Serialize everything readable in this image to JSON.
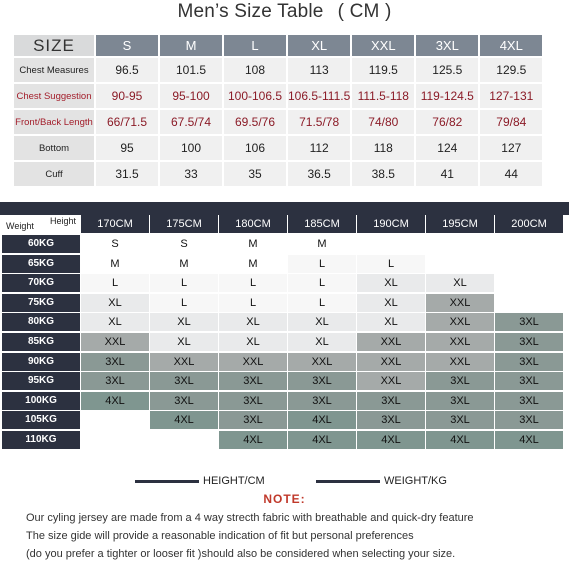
{
  "title": {
    "text": "Men’s  Size Table",
    "unit": "(   CM   )"
  },
  "size_table": {
    "header_label": "SIZE",
    "sizes": [
      "S",
      "M",
      "L",
      "XL",
      "XXL",
      "3XL",
      "4XL"
    ],
    "rows": [
      {
        "label": "Chest Measures",
        "red": false,
        "values": [
          "96.5",
          "101.5",
          "108",
          "113",
          "119.5",
          "125.5",
          "129.5"
        ]
      },
      {
        "label": "Chest Suggestion",
        "red": true,
        "values": [
          "90-95",
          "95-100",
          "100-106.5",
          "106.5-111.5",
          "111.5-118",
          "119-124.5",
          "127-131"
        ]
      },
      {
        "label": "Front/Back Length",
        "red": true,
        "values": [
          "66/71.5",
          "67.5/74",
          "69.5/76",
          "71.5/78",
          "74/80",
          "76/82",
          "79/84"
        ]
      },
      {
        "label": "Bottom",
        "red": false,
        "values": [
          "95",
          "100",
          "106",
          "112",
          "118",
          "124",
          "127"
        ]
      },
      {
        "label": "Cuff",
        "red": false,
        "values": [
          "31.5",
          "33",
          "35",
          "36.5",
          "38.5",
          "41",
          "44"
        ]
      }
    ]
  },
  "grid": {
    "corner_height": "Height",
    "corner_weight": "Weight",
    "heights": [
      "170CM",
      "175CM",
      "180CM",
      "185CM",
      "190CM",
      "195CM",
      "200CM"
    ],
    "weights": [
      "60KG",
      "65KG",
      "70KG",
      "75KG",
      "80KG",
      "85KG",
      "90KG",
      "95KG",
      "100KG",
      "105KG",
      "110KG"
    ],
    "cells": [
      [
        "S",
        "S",
        "M",
        "M",
        "",
        "",
        ""
      ],
      [
        "M",
        "M",
        "M",
        "L",
        "L",
        "",
        ""
      ],
      [
        "L",
        "L",
        "L",
        "L",
        "XL",
        "XL",
        ""
      ],
      [
        "XL",
        "L",
        "L",
        "L",
        "XL",
        "XXL",
        ""
      ],
      [
        "XL",
        "XL",
        "XL",
        "XL",
        "XL",
        "XXL",
        "3XL"
      ],
      [
        "XXL",
        "XL",
        "XL",
        "XL",
        "XXL",
        "XXL",
        "3XL"
      ],
      [
        "3XL",
        "XXL",
        "XXL",
        "XXL",
        "XXL",
        "XXL",
        "3XL"
      ],
      [
        "3XL",
        "3XL",
        "3XL",
        "3XL",
        "XXL",
        "3XL",
        "3XL"
      ],
      [
        "4XL",
        "3XL",
        "3XL",
        "3XL",
        "3XL",
        "3XL",
        "3XL"
      ],
      [
        "",
        "4XL",
        "3XL",
        "4XL",
        "3XL",
        "3XL",
        "3XL"
      ],
      [
        "",
        "",
        "4XL",
        "4XL",
        "4XL",
        "4XL",
        "4XL"
      ]
    ],
    "colors": {
      "": "#ffffff",
      "S": "#ffffff",
      "M": "#ffffff",
      "L": "#f7f7f7",
      "XL": "#e9eaeb",
      "XXL": "#a5aaa9",
      "3XL": "#8a9995",
      "4XL": "#7f9690"
    }
  },
  "legend": {
    "height": "HEIGHT/CM",
    "weight": "WEIGHT/KG"
  },
  "note": {
    "title": "NOTE:",
    "lines": [
      "Our cyling jersey are made from a 4 way strecth fabric with breathable and quick-dry feature",
      "The size gide will provide a  reasonable indication of fit but personal preferences",
      "(do you prefer a tighter or looser fit )should also be considered when selecting your size."
    ]
  }
}
